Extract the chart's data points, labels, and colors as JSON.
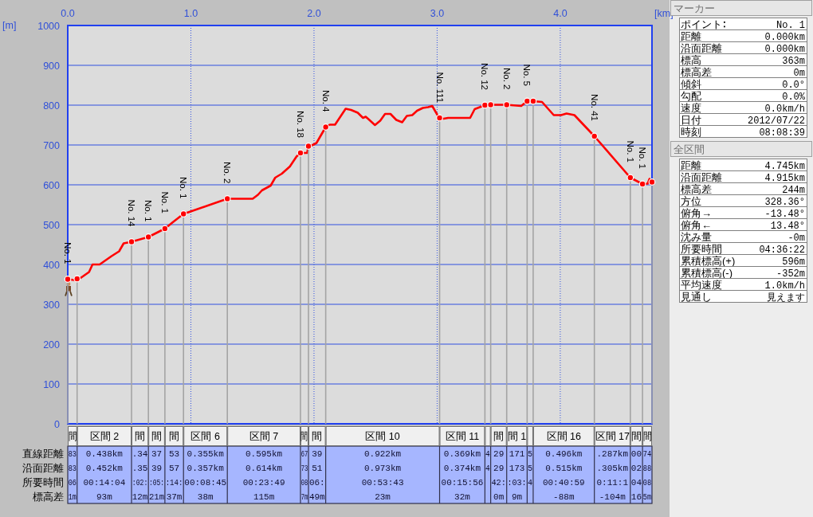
{
  "chart_data": [
    {
      "type": "line",
      "xlabel": "[km]",
      "ylabel": "[m]",
      "xlim": [
        0,
        4.745
      ],
      "ylim": [
        0,
        1000
      ],
      "xticks": [
        {
          "value": 0,
          "label": "0.0"
        },
        {
          "value": 1,
          "label": "1.0"
        },
        {
          "value": 2,
          "label": "2.0"
        },
        {
          "value": 3,
          "label": "3.0"
        },
        {
          "value": 4,
          "label": "4.0"
        }
      ],
      "yticks": [
        0,
        100,
        200,
        300,
        400,
        500,
        600,
        700,
        800,
        900,
        1000
      ],
      "grid": true,
      "x": [
        0,
        0.076,
        0.173,
        0.201,
        0.259,
        0.356,
        0.417,
        0.454,
        0.518,
        0.655,
        0.789,
        0.853,
        0.94,
        0.979,
        1.296,
        1.502,
        1.545,
        1.577,
        1.648,
        1.685,
        1.739,
        1.804,
        1.858,
        1.89,
        1.944,
        1.955,
        1.977,
        2.02,
        2.095,
        2.128,
        2.171,
        2.257,
        2.301,
        2.355,
        2.398,
        2.42,
        2.442,
        2.495,
        2.538,
        2.577,
        2.621,
        2.668,
        2.716,
        2.754,
        2.798,
        2.837,
        2.884,
        2.927,
        2.96,
        3.003,
        3.02,
        3.053,
        3.089,
        3.268,
        3.305,
        3.388,
        3.435,
        3.565,
        3.601,
        3.683,
        3.731,
        3.78,
        3.852,
        3.947,
        4.007,
        4.051,
        4.115,
        4.277,
        4.569,
        4.668,
        4.71,
        4.725,
        4.745
      ],
      "series": [
        {
          "color": "#ff0000",
          "values": [
            363,
            360,
            381,
            400,
            400,
            421,
            433,
            453,
            457,
            469,
            490,
            506,
            527,
            531,
            565,
            565,
            575,
            586,
            598,
            618,
            628,
            646,
            671,
            680,
            680,
            697,
            698,
            705,
            745,
            751,
            751,
            791,
            788,
            781,
            768,
            771,
            765,
            750,
            761,
            778,
            778,
            763,
            757,
            773,
            775,
            786,
            793,
            795,
            798,
            775,
            768,
            766,
            768,
            768,
            790,
            800,
            801,
            801,
            800,
            798,
            810,
            810,
            808,
            775,
            775,
            779,
            775,
            722,
            618,
            602,
            603,
            615,
            607
          ]
        },
        {
          "type": "lollipop",
          "marker": "circle",
          "color": "#ff0000",
          "x": [
            0,
            0.076,
            0.518,
            0.655,
            0.789,
            0.94,
            1.296,
            1.89,
            1.955,
            2.095,
            3.02,
            3.388,
            3.435,
            3.565,
            3.731,
            3.78,
            4.277,
            4.569,
            4.668,
            4.745
          ],
          "values": [
            363,
            364,
            457,
            469,
            490,
            527,
            565,
            680,
            697,
            745,
            768,
            800,
            801,
            801,
            810,
            810,
            722,
            618,
            602,
            607
          ]
        }
      ],
      "annotations": [
        {
          "text": "No. 1",
          "x": 0,
          "y": 363
        },
        {
          "text": "No. 14",
          "x": 0.518,
          "y": 457
        },
        {
          "text": "No. 1",
          "x": 0.655,
          "y": 469
        },
        {
          "text": "No. 1",
          "x": 0.789,
          "y": 490
        },
        {
          "text": "No. 1",
          "x": 0.94,
          "y": 527
        },
        {
          "text": "No. 2",
          "x": 1.296,
          "y": 565
        },
        {
          "text": "No. 18",
          "x": 1.89,
          "y": 680
        },
        {
          "text": "No. 4",
          "x": 2.095,
          "y": 745
        },
        {
          "text": "No. 111",
          "x": 3.02,
          "y": 768
        },
        {
          "text": "No. 12",
          "x": 3.388,
          "y": 800
        },
        {
          "text": "No. 2",
          "x": 3.565,
          "y": 801
        },
        {
          "text": "No. 5",
          "x": 3.731,
          "y": 810
        },
        {
          "text": "No. 41",
          "x": 4.277,
          "y": 722
        },
        {
          "text": "No. 1",
          "x": 4.569,
          "y": 618
        },
        {
          "text": "No. 1",
          "x": 4.668,
          "y": 602
        }
      ]
    },
    {
      "type": "other",
      "categories": [
        "間",
        "区間 2",
        "間",
        "間",
        "間",
        "区間 6",
        "区間 7",
        "間",
        "間",
        "区間 10",
        "区間 11",
        null,
        "間",
        "間 1",
        null,
        "区間 16",
        "区間 17",
        "間",
        "間"
      ],
      "y_categories": [
        "直線距離",
        "沿面距離",
        "所要時間",
        "標高差"
      ],
      "cell_labels": [
        [
          "83",
          "0.438km",
          ".34",
          "37",
          "53",
          "0.355km",
          "0.595km",
          "67",
          "39",
          "0.922km",
          "0.369km",
          "4",
          "29",
          "171",
          "5",
          "0.496km",
          ".287km",
          "00",
          "74"
        ],
        [
          "83",
          "0.452km",
          ".35",
          "39",
          "57",
          "0.357km",
          "0.614km",
          "73",
          "51",
          "0.973km",
          "0.374km",
          "4",
          "29",
          "173",
          "5",
          "0.515km",
          ".305km",
          "02",
          "88"
        ],
        [
          "06",
          "00:14:04",
          ":02:",
          ":05:",
          ":14:",
          "00:08:45",
          "00:23:49",
          "08",
          "06:",
          "00:53:43",
          "00:15:56",
          null,
          "42:",
          ":03:",
          "4",
          "00:40:59",
          "0:11:1",
          "04",
          "08"
        ],
        [
          "1m",
          "93m",
          "12m",
          "21m",
          "37m",
          "38m",
          "115m",
          "7m",
          "49m",
          "23m",
          "32m",
          null,
          "0m",
          "9m",
          null,
          "-88m",
          "-104m",
          "16",
          "5m"
        ]
      ]
    },
    {
      "type": "other",
      "title": "マーカー",
      "categories": [
        "ポイント",
        "距離",
        "沿面距離",
        "標高",
        "標高差",
        "傾斜",
        "勾配",
        "速度",
        "日付",
        "時刻"
      ],
      "value_labels": [
        "No. 1",
        "0.000km",
        "0.000km",
        "363m",
        "0m",
        "0.0°",
        "0.0%",
        "0.0km/h",
        "2012/07/22",
        "08:08:39"
      ]
    },
    {
      "type": "other",
      "title": "全区間",
      "categories": [
        "距離",
        "沿面距離",
        "標高差",
        "方位",
        "俯角→",
        "俯角←",
        "沈み量",
        "所要時間",
        "累積標高(+)",
        "累積標高(-)",
        "平均速度",
        "見通し"
      ],
      "value_labels": [
        "4.745km",
        "4.915km",
        "244m",
        "328.36°",
        "-13.48°",
        "13.48°",
        "-0m",
        "04:36:22",
        "596m",
        "-352m",
        "1.0km/h",
        "見えます"
      ]
    }
  ]
}
